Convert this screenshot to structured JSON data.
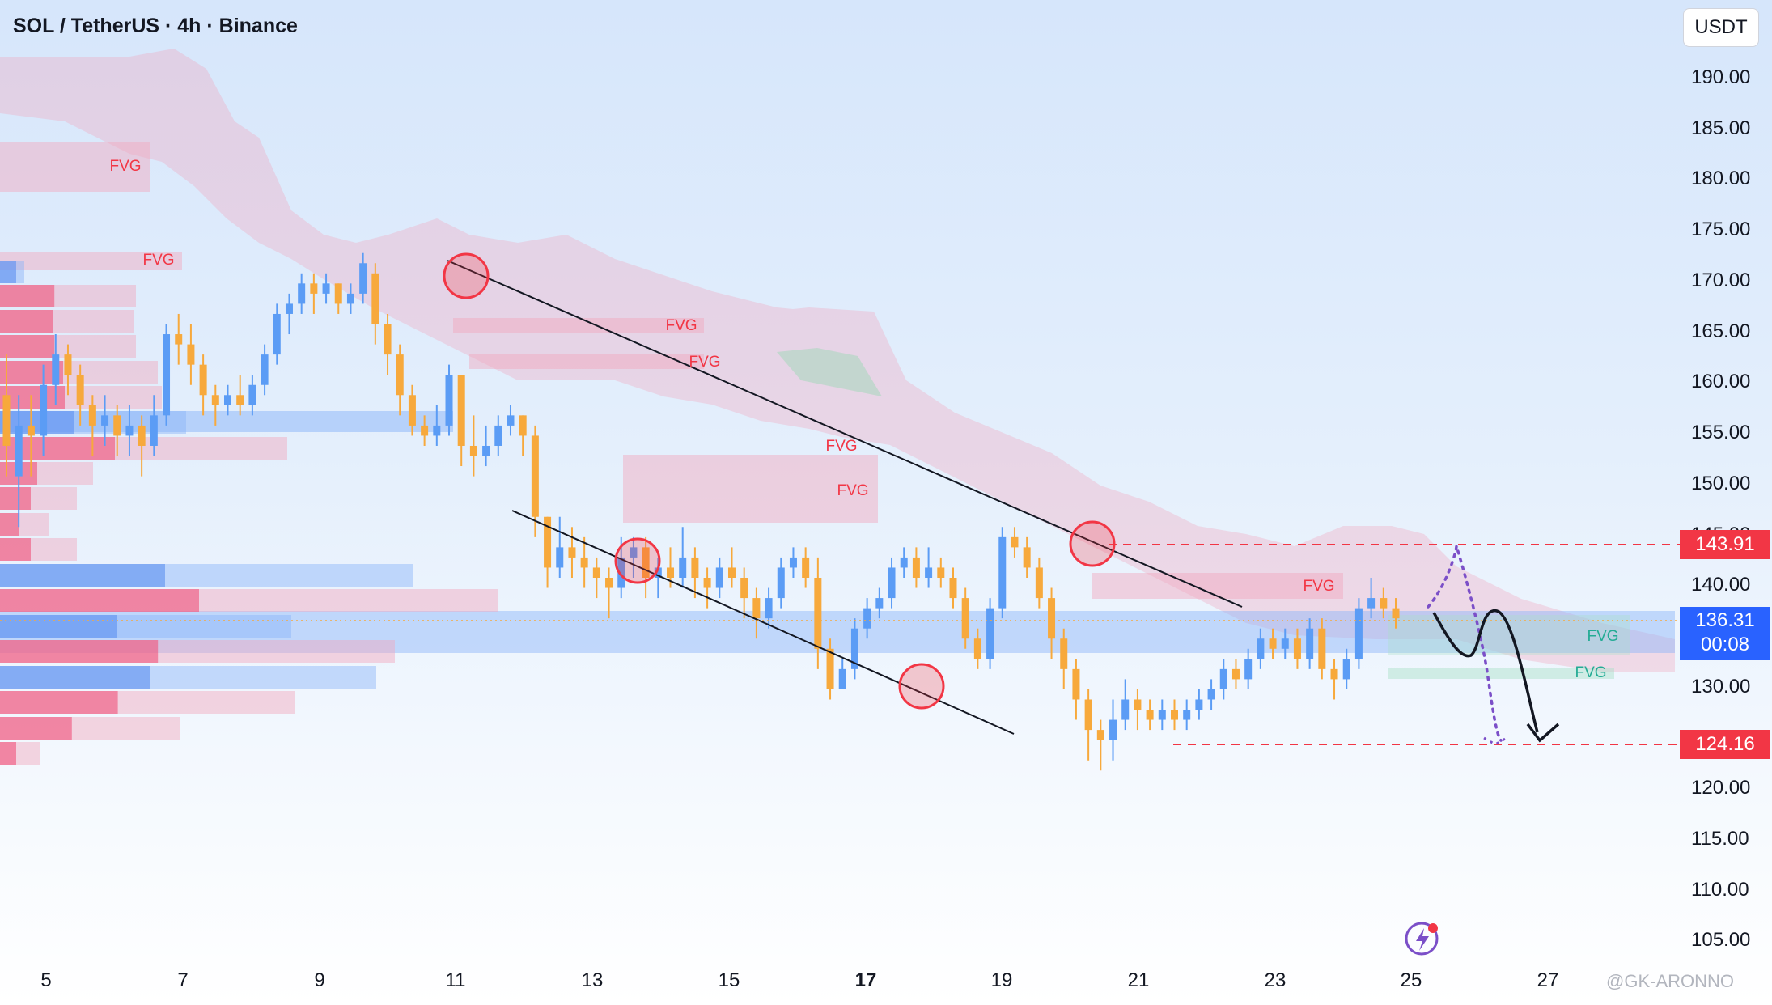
{
  "header": {
    "title": "SOL / TetherUS · 4h · Binance",
    "currency": "USDT"
  },
  "footer": {
    "watermark": "@GK-ARONNO"
  },
  "colors": {
    "bull": "#5b9cf5",
    "bear": "#f7a93c",
    "supply_zone": "#f2a7bd",
    "demand_zone": "#8ab4f8",
    "resistance": "#f23645",
    "channel": "#131722"
  },
  "chart_data": {
    "type": "candlestick",
    "symbol": "SOL / TetherUS",
    "timeframe": "4h",
    "exchange": "Binance",
    "ylim": [
      104,
      193
    ],
    "price_ticks": [
      "190.00",
      "185.00",
      "180.00",
      "175.00",
      "170.00",
      "165.00",
      "160.00",
      "155.00",
      "150.00",
      "145.00",
      "140.00",
      "130.00",
      "120.00",
      "115.00",
      "110.00",
      "105.00"
    ],
    "time_ticks": [
      "5",
      "7",
      "9",
      "11",
      "13",
      "15",
      "17",
      "19",
      "21",
      "23",
      "25",
      "27"
    ],
    "last_price": "136.31",
    "countdown": "00:08",
    "levels": {
      "resistance": "143.91",
      "support": "124.16"
    },
    "fvg_labels": [
      "FVG",
      "FVG",
      "FVG",
      "FVG",
      "FVG",
      "FVG",
      "FVG",
      "FVG",
      "FVG"
    ],
    "candles": [
      [
        158,
        153,
        150,
        162
      ],
      [
        150,
        155,
        145,
        158
      ],
      [
        155,
        154,
        150,
        158
      ],
      [
        154,
        159,
        152,
        161
      ],
      [
        159,
        162,
        157,
        164
      ],
      [
        162,
        160,
        158,
        163
      ],
      [
        160,
        157,
        155,
        161
      ],
      [
        157,
        155,
        152,
        158
      ],
      [
        155,
        156,
        153,
        158
      ],
      [
        156,
        154,
        152,
        157
      ],
      [
        154,
        155,
        152,
        157
      ],
      [
        155,
        153,
        150,
        156
      ],
      [
        153,
        156,
        152,
        158
      ],
      [
        156,
        164,
        155,
        165
      ],
      [
        164,
        163,
        161,
        166
      ],
      [
        163,
        161,
        159,
        165
      ],
      [
        161,
        158,
        156,
        162
      ],
      [
        158,
        157,
        155,
        159
      ],
      [
        157,
        158,
        156,
        159
      ],
      [
        158,
        157,
        156,
        160
      ],
      [
        157,
        159,
        156,
        160
      ],
      [
        159,
        162,
        158,
        163
      ],
      [
        162,
        166,
        161,
        167
      ],
      [
        166,
        167,
        164,
        168
      ],
      [
        167,
        169,
        166,
        170
      ],
      [
        169,
        168,
        166,
        170
      ],
      [
        168,
        169,
        167,
        170
      ],
      [
        169,
        167,
        166,
        169
      ],
      [
        167,
        168,
        166,
        169
      ],
      [
        168,
        171,
        167,
        172
      ],
      [
        170,
        165,
        163,
        171
      ],
      [
        165,
        162,
        160,
        166
      ],
      [
        162,
        158,
        156,
        163
      ],
      [
        158,
        155,
        154,
        159
      ],
      [
        155,
        154,
        153,
        156
      ],
      [
        154,
        155,
        153,
        157
      ],
      [
        155,
        160,
        154,
        161
      ],
      [
        160,
        153,
        151,
        160
      ],
      [
        153,
        152,
        150,
        156
      ],
      [
        152,
        153,
        151,
        155
      ],
      [
        153,
        155,
        152,
        156
      ],
      [
        155,
        156,
        154,
        157
      ],
      [
        156,
        154,
        152,
        156
      ],
      [
        154,
        146,
        144,
        155
      ],
      [
        146,
        141,
        139,
        146
      ],
      [
        141,
        143,
        140,
        146
      ],
      [
        143,
        142,
        140,
        145
      ],
      [
        142,
        141,
        139,
        144
      ],
      [
        141,
        140,
        138,
        142
      ],
      [
        140,
        139,
        136,
        141
      ],
      [
        139,
        142,
        138,
        144
      ],
      [
        142,
        143,
        140,
        144
      ],
      [
        143,
        140,
        138,
        144
      ],
      [
        140,
        141,
        138,
        142
      ],
      [
        141,
        140,
        139,
        143
      ],
      [
        140,
        142,
        139,
        145
      ],
      [
        142,
        140,
        138,
        143
      ],
      [
        140,
        139,
        137,
        141
      ],
      [
        139,
        141,
        138,
        142
      ],
      [
        141,
        140,
        139,
        143
      ],
      [
        140,
        138,
        136,
        141
      ],
      [
        138,
        136,
        134,
        139
      ],
      [
        136,
        138,
        135,
        139
      ],
      [
        138,
        141,
        137,
        142
      ],
      [
        141,
        142,
        140,
        143
      ],
      [
        142,
        140,
        139,
        143
      ],
      [
        140,
        133,
        131,
        142
      ],
      [
        133,
        129,
        128,
        134
      ],
      [
        129,
        131,
        129,
        132
      ],
      [
        131,
        135,
        130,
        136
      ],
      [
        135,
        137,
        134,
        138
      ],
      [
        137,
        138,
        136,
        139
      ],
      [
        138,
        141,
        137,
        142
      ],
      [
        141,
        142,
        140,
        143
      ],
      [
        142,
        140,
        139,
        143
      ],
      [
        140,
        141,
        139,
        143
      ],
      [
        141,
        140,
        139,
        142
      ],
      [
        140,
        138,
        137,
        141
      ],
      [
        138,
        134,
        133,
        139
      ],
      [
        134,
        132,
        131,
        135
      ],
      [
        132,
        137,
        131,
        138
      ],
      [
        137,
        144,
        136,
        145
      ],
      [
        144,
        143,
        142,
        145
      ],
      [
        143,
        141,
        140,
        144
      ],
      [
        141,
        138,
        137,
        142
      ],
      [
        138,
        134,
        132,
        139
      ],
      [
        134,
        131,
        129,
        135
      ],
      [
        131,
        128,
        126,
        132
      ],
      [
        128,
        125,
        122,
        129
      ],
      [
        125,
        124,
        121,
        126
      ],
      [
        124,
        126,
        122,
        128
      ],
      [
        126,
        128,
        125,
        130
      ],
      [
        128,
        127,
        125,
        129
      ],
      [
        127,
        126,
        125,
        128
      ],
      [
        126,
        127,
        125,
        128
      ],
      [
        127,
        126,
        125,
        128
      ],
      [
        126,
        127,
        125,
        128
      ],
      [
        127,
        128,
        126,
        129
      ],
      [
        128,
        129,
        127,
        130
      ],
      [
        129,
        131,
        128,
        132
      ],
      [
        131,
        130,
        129,
        132
      ],
      [
        130,
        132,
        129,
        133
      ],
      [
        132,
        134,
        131,
        135
      ],
      [
        134,
        133,
        132,
        135
      ],
      [
        133,
        134,
        132,
        135
      ],
      [
        134,
        132,
        131,
        135
      ],
      [
        132,
        135,
        131,
        136
      ],
      [
        135,
        131,
        130,
        136
      ],
      [
        131,
        130,
        128,
        132
      ],
      [
        130,
        132,
        129,
        133
      ],
      [
        132,
        137,
        131,
        138
      ],
      [
        137,
        138,
        136,
        140
      ],
      [
        138,
        137,
        136,
        139
      ],
      [
        137,
        136,
        135,
        138
      ]
    ]
  }
}
